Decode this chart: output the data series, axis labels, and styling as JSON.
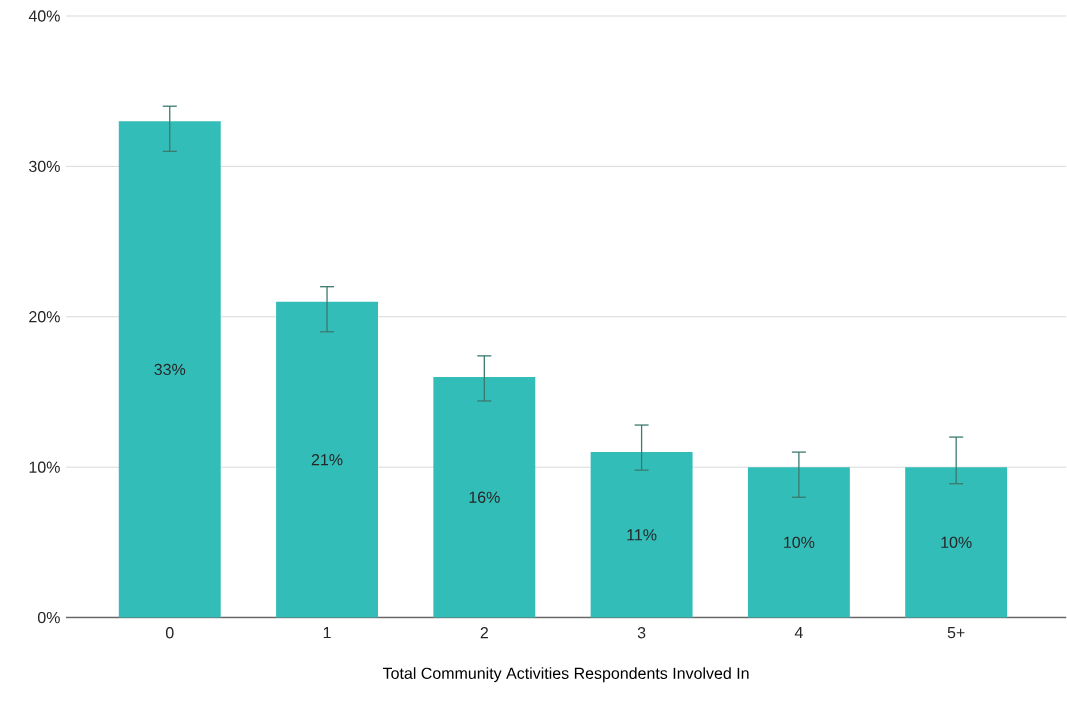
{
  "chart_data": {
    "type": "bar",
    "xlabel": "Total Community Activities Respondents Involved In",
    "categories": [
      "0",
      "1",
      "2",
      "3",
      "4",
      "5+"
    ],
    "values": [
      33,
      21,
      16,
      11,
      10,
      10
    ],
    "value_labels": [
      "33%",
      "21%",
      "16%",
      "11%",
      "10%",
      "10%"
    ],
    "errors": [
      [
        31,
        34
      ],
      [
        19,
        22
      ],
      [
        14.4,
        17.4
      ],
      [
        9.8,
        12.8
      ],
      [
        8,
        11
      ],
      [
        8.9,
        12
      ]
    ],
    "color": "#33bdb8",
    "ylim": [
      0,
      40
    ],
    "yticks": [
      {
        "value": 0,
        "label": "0%"
      },
      {
        "value": 10,
        "label": "10%"
      },
      {
        "value": 20,
        "label": "20%"
      },
      {
        "value": 30,
        "label": "30%"
      },
      {
        "value": 40,
        "label": "40%"
      }
    ],
    "grid": "y"
  }
}
